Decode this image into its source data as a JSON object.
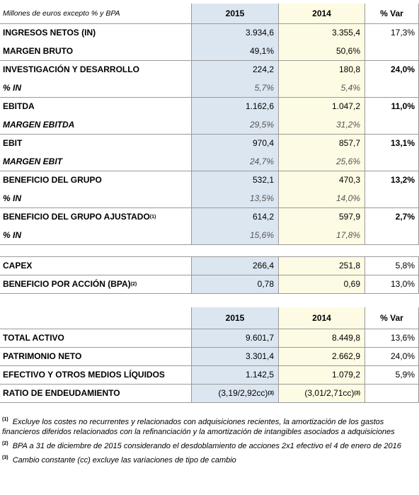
{
  "table1": {
    "header": {
      "label": "Millones de euros excepto % y BPA",
      "col_a": "2015",
      "col_b": "2014",
      "col_v": "% Var"
    },
    "rows": [
      {
        "label": "INGRESOS NETOS (IN)",
        "a": "3.934,6",
        "b": "3.355,4",
        "v": "17,3%"
      },
      {
        "label": "MARGEN BRUTO",
        "a": "49,1%",
        "b": "50,6%",
        "v": ""
      },
      {
        "label": "INVESTIGACIÓN Y DESARROLLO",
        "a": "224,2",
        "b": "180,8",
        "v": "24,0%"
      },
      {
        "label": "% IN",
        "a": "5,7%",
        "b": "5,4%",
        "v": ""
      },
      {
        "label": "EBITDA",
        "a": "1.162,6",
        "b": "1.047,2",
        "v": "11,0%"
      },
      {
        "label": "MARGEN EBITDA",
        "a": "29,5%",
        "b": "31,2%",
        "v": ""
      },
      {
        "label": "EBIT",
        "a": "970,4",
        "b": "857,7",
        "v": "13,1%"
      },
      {
        "label": "MARGEN EBIT",
        "a": "24,7%",
        "b": "25,6%",
        "v": ""
      },
      {
        "label": "BENEFICIO DEL GRUPO",
        "a": "532,1",
        "b": "470,3",
        "v": "13,2%"
      },
      {
        "label": "% IN",
        "a": "13,5%",
        "b": "14,0%",
        "v": ""
      },
      {
        "label": "BENEFICIO DEL GRUPO AJUSTADO",
        "sup": "(1)",
        "a": "614,2",
        "b": "597,9",
        "v": "2,7%"
      },
      {
        "label": "% IN",
        "a": "15,6%",
        "b": "17,8%",
        "v": ""
      },
      {
        "label": "CAPEX",
        "a": "266,4",
        "b": "251,8",
        "v": "5,8%"
      },
      {
        "label": "BENEFICIO POR ACCIÓN (BPA)",
        "sup": "(2)",
        "a": "0,78",
        "b": "0,69",
        "v": "13,0%"
      }
    ]
  },
  "table2": {
    "header": {
      "col_a": "2015",
      "col_b": "2014",
      "col_v": "% Var"
    },
    "rows": [
      {
        "label": "TOTAL ACTIVO",
        "a": "9.601,7",
        "b": "8.449,8",
        "v": "13,6%"
      },
      {
        "label": "PATRIMONIO NETO",
        "a": "3.301,4",
        "b": "2.662,9",
        "v": "24,0%"
      },
      {
        "label": "EFECTIVO Y OTROS MEDIOS LÍQUIDOS",
        "a": "1.142,5",
        "b": "1.079,2",
        "v": "5,9%"
      },
      {
        "label": "RATIO DE ENDEUDAMIENTO",
        "a": "(3,19/2,92cc)",
        "a_sup": "(3)",
        "b": "(3,01/2,71cc)",
        "b_sup": "(3)",
        "v": ""
      }
    ]
  },
  "notes": [
    {
      "sup": "(1)",
      "text": "Excluye los costes no recurrentes y relacionados con adquisiciones recientes, la amortización de los gastos financieros diferidos relacionados con la refinanciación y la amortización de intangibles asociados a adquisiciones"
    },
    {
      "sup": "(2)",
      "text": "BPA a 31 de diciembre de 2015 considerando el desdoblamiento de acciones 2x1 efectivo el 4 de enero de 2016"
    },
    {
      "sup": "(3)",
      "text": "Cambio constante (cc) excluye las variaciones de tipo de cambio"
    }
  ]
}
